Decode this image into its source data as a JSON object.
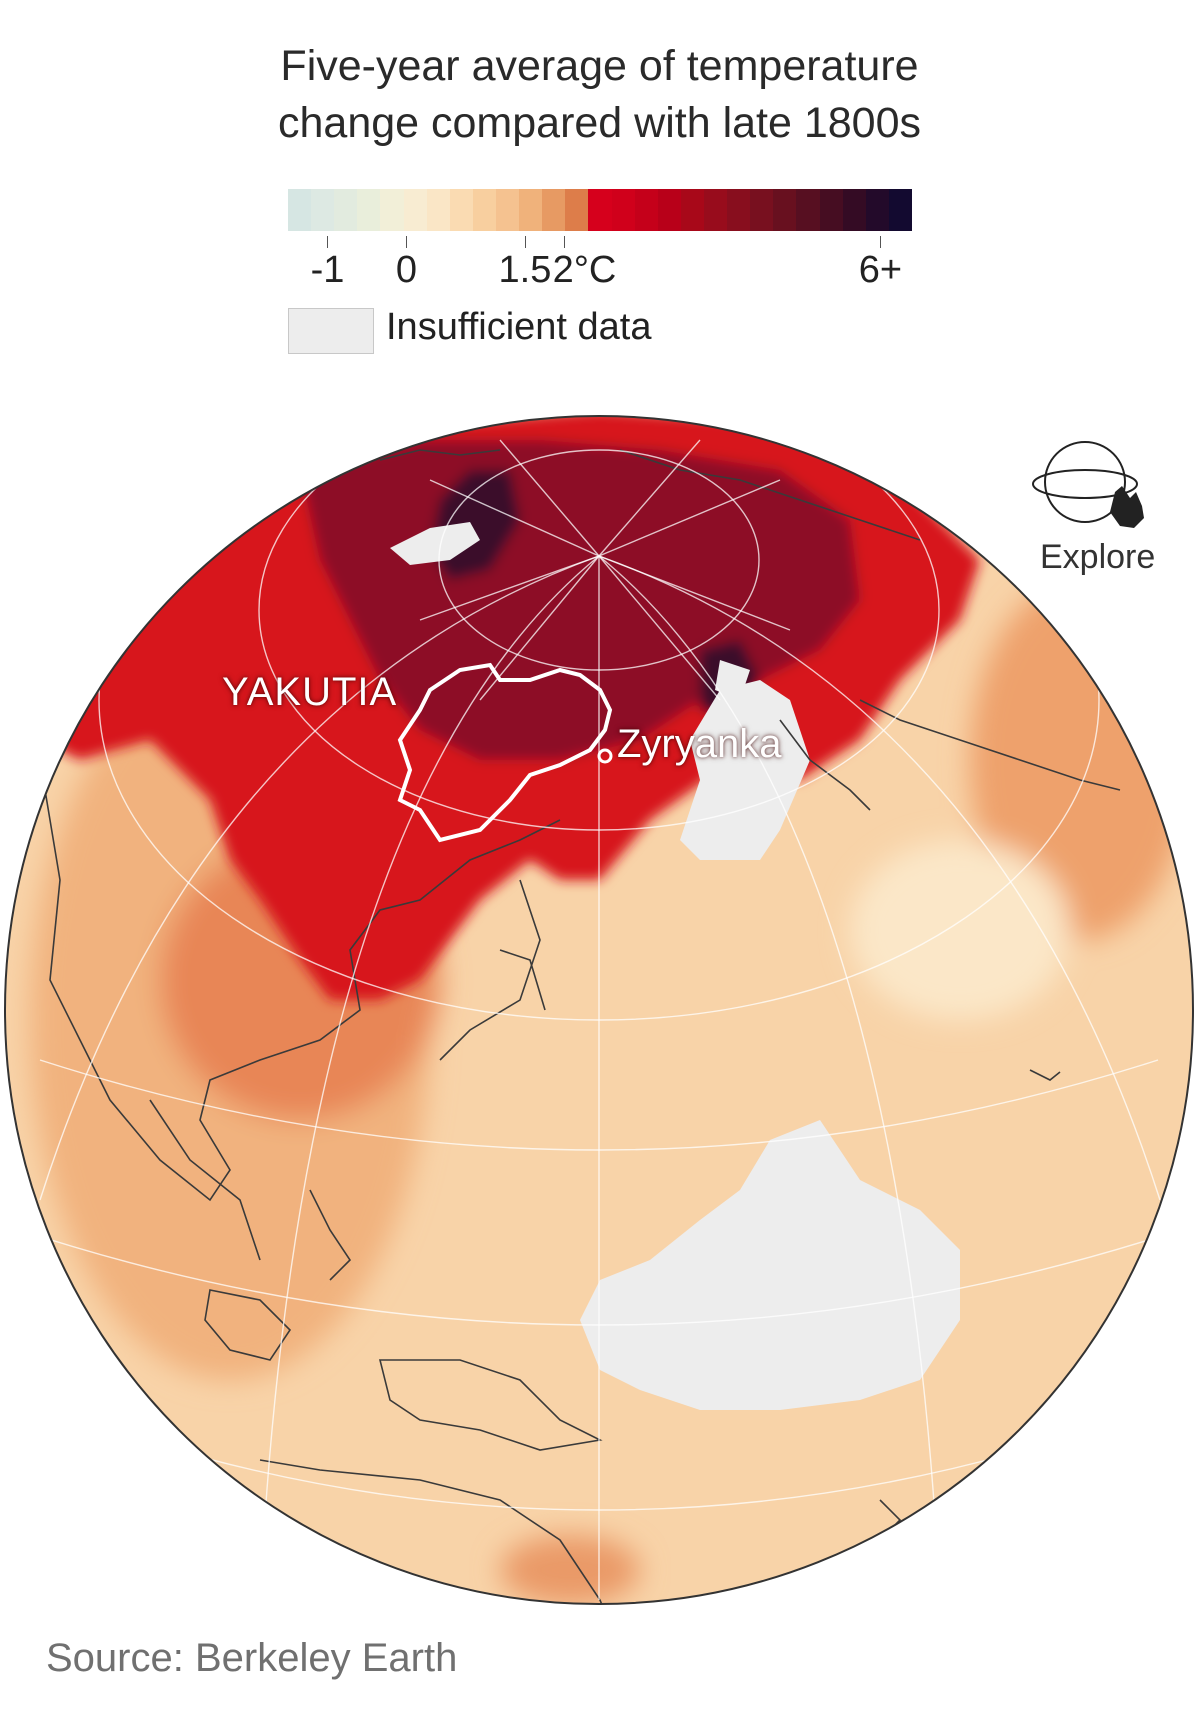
{
  "title": {
    "line1": "Five-year average of temperature",
    "line2": "change compared with late 1800s"
  },
  "legend": {
    "ticks": [
      {
        "label": "-1",
        "value": -1
      },
      {
        "label": "0",
        "value": 0
      },
      {
        "label": "1.5",
        "value": 1.5
      },
      {
        "label": "2°C",
        "value": 2
      },
      {
        "label": "6+",
        "value": 6
      }
    ],
    "scale_min": -1.5,
    "scale_max": 6.4,
    "colors": [
      "#d6e6e3",
      "#dde9e3",
      "#e2ebdf",
      "#e9eedb",
      "#f2efd8",
      "#f8ecd2",
      "#fae6c6",
      "#fadbb2",
      "#f8cf9f",
      "#f5c290",
      "#f0b27b",
      "#e79a63",
      "#dd7d4a",
      "#d6001c",
      "#d0001b",
      "#c5001a",
      "#b80019",
      "#a80819",
      "#980c1c",
      "#880e1e",
      "#78101f",
      "#68101f",
      "#570f21",
      "#460d22",
      "#340b24",
      "#230a2a",
      "#130a30"
    ],
    "nodata_label": "Insufficient data",
    "nodata_color": "#ededed"
  },
  "map": {
    "places": [
      {
        "name": "YAKUTIA",
        "kind": "region"
      },
      {
        "name": "Zyryanka",
        "kind": "town"
      }
    ],
    "colors": {
      "ocean_warm": "#f8d3a8",
      "land_warm": "#f2b786",
      "hot_red": "#d7141f",
      "very_hot": "#7b0c26",
      "extreme": "#2a0a2c",
      "nodata": "#ededed",
      "border": "#3a3a3a"
    }
  },
  "controls": {
    "explore_label": "Explore",
    "explore_icon": "globe-hand-icon"
  },
  "source": "Source: Berkeley Earth"
}
